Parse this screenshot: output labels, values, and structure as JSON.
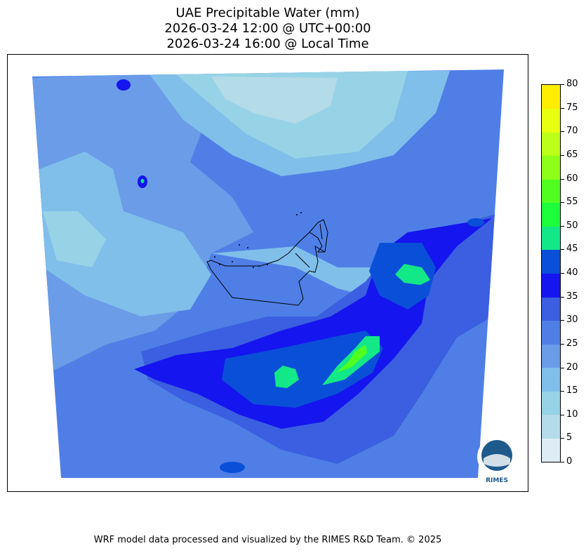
{
  "title": {
    "line1": "UAE Precipitable Water (mm)",
    "line2": "2026-03-24 12:00 @ UTC+00:00",
    "line3": "2026-03-24 16:00 @ Local Time"
  },
  "colorbar": {
    "levels": [
      0,
      5,
      10,
      15,
      20,
      25,
      30,
      35,
      40,
      45,
      50,
      55,
      60,
      65,
      70,
      75,
      80
    ],
    "colors": [
      "#deedf5",
      "#b4dbe8",
      "#97d3e6",
      "#7fbfea",
      "#6a9ce8",
      "#4f7fe6",
      "#3b5fe0",
      "#1515ef",
      "#0a4fd8",
      "#13e888",
      "#1cff3a",
      "#50ff20",
      "#8dff18",
      "#bcff18",
      "#e8ff10",
      "#ffee00",
      "#ffc800"
    ]
  },
  "map": {
    "logo_text": "RIMES",
    "colors": {
      "background": "#4f7fe6",
      "light": "#7fbfea",
      "lighter": "#97d3e6",
      "lightest": "#b4dbe8",
      "mid": "#6a9ce8",
      "dark": "#3b5fe0",
      "darker": "#1515ef",
      "darkest": "#0a4fd8",
      "high": "#13e888",
      "higher": "#50ff20",
      "border": "#000000"
    }
  },
  "footer": "WRF model data processed and visualized by the RIMES R&D Team. © 2025"
}
